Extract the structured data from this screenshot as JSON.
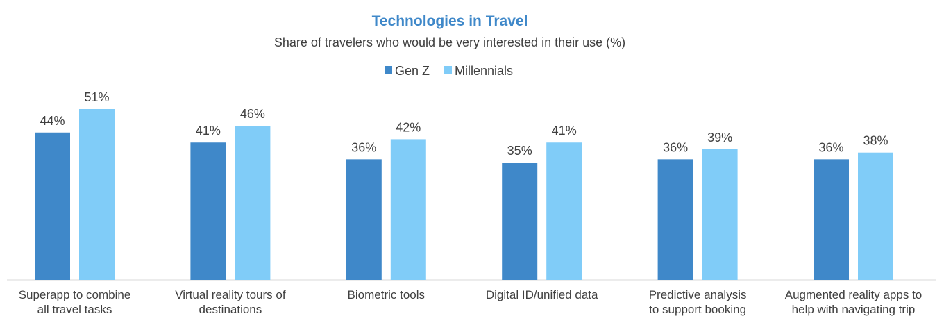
{
  "chart_data": {
    "type": "bar",
    "title": "Technologies in Travel",
    "subtitle": "Share of travelers who would be very interested in their use (%)",
    "categories": [
      [
        "Superapp to combine",
        "all travel tasks"
      ],
      [
        "Virtual reality tours of",
        "destinations"
      ],
      [
        "Biometric tools"
      ],
      [
        "Digital ID/unified data"
      ],
      [
        "Predictive analysis",
        "to support booking"
      ],
      [
        "Augmented reality apps to",
        "help with navigating trip"
      ]
    ],
    "series": [
      {
        "name": "Gen Z",
        "color": "#3f88c9",
        "values": [
          44,
          41,
          36,
          35,
          36,
          36
        ],
        "labels": [
          "44%",
          "41%",
          "36%",
          "35%",
          "36%",
          "36%"
        ]
      },
      {
        "name": "Millennials",
        "color": "#80ccf8",
        "values": [
          51,
          46,
          42,
          41,
          39,
          38
        ],
        "labels": [
          "51%",
          "46%",
          "42%",
          "41%",
          "39%",
          "38%"
        ]
      }
    ],
    "ylim": [
      0,
      51
    ],
    "xlabel": "",
    "ylabel": "",
    "grid": false,
    "legend_position": "top-center",
    "title_color": "#3f88c9",
    "axis_color": "#d9d9d9"
  }
}
